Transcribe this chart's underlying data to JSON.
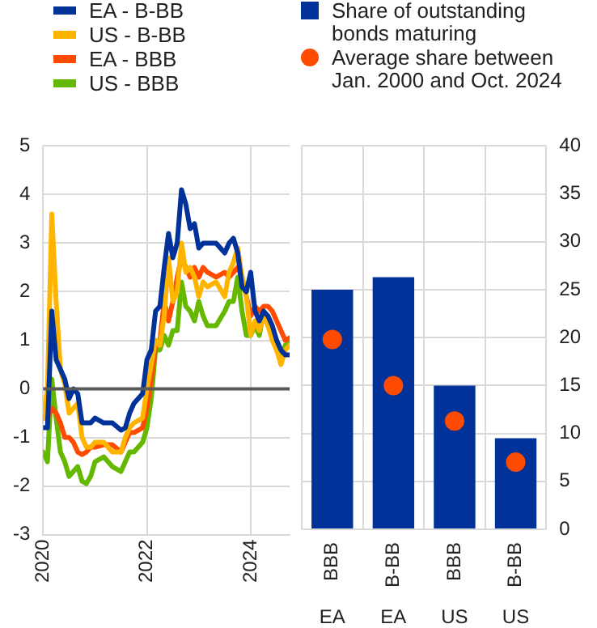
{
  "chart_data": [
    {
      "type": "line",
      "x": [
        "2020-01",
        "2020-02",
        "2020-03",
        "2020-04",
        "2020-05",
        "2020-06",
        "2020-07",
        "2020-08",
        "2020-09",
        "2020-10",
        "2020-11",
        "2020-12",
        "2021-01",
        "2021-03",
        "2021-05",
        "2021-07",
        "2021-08",
        "2021-09",
        "2021-10",
        "2021-12",
        "2022-01",
        "2022-02",
        "2022-03",
        "2022-04",
        "2022-05",
        "2022-06",
        "2022-07",
        "2022-08",
        "2022-09",
        "2022-10",
        "2022-11",
        "2022-12",
        "2023-01",
        "2023-02",
        "2023-03",
        "2023-05",
        "2023-07",
        "2023-08",
        "2023-09",
        "2023-10",
        "2023-11",
        "2023-12",
        "2024-01",
        "2024-02",
        "2024-03",
        "2024-04",
        "2024-05",
        "2024-06",
        "2024-07",
        "2024-08",
        "2024-09",
        "2024-10"
      ],
      "series": [
        {
          "name": "EA - B-BB",
          "color": "#003299",
          "values": [
            -0.8,
            -0.8,
            1.6,
            0.6,
            0.4,
            0.2,
            -0.2,
            0.0,
            -0.1,
            -0.7,
            -0.7,
            -0.7,
            -0.6,
            -0.7,
            -0.7,
            -0.85,
            -0.8,
            -0.5,
            -0.3,
            -0.1,
            0.6,
            0.8,
            1.6,
            1.7,
            2.5,
            3.2,
            2.7,
            3.0,
            4.1,
            3.8,
            3.3,
            3.4,
            2.9,
            3.0,
            3.0,
            3.0,
            2.8,
            3.0,
            3.1,
            2.8,
            2.1,
            2.0,
            2.4,
            1.6,
            1.4,
            1.6,
            1.5,
            1.3,
            1.0,
            0.8,
            0.7,
            0.7
          ]
        },
        {
          "name": "US - B-BB",
          "color": "#ffb400",
          "values": [
            -0.6,
            0.0,
            3.6,
            1.8,
            0.4,
            0.1,
            -0.5,
            -0.4,
            -0.3,
            -1.0,
            -1.2,
            -1.2,
            -1.1,
            -1.1,
            -1.3,
            -1.3,
            -1.0,
            -0.8,
            -0.7,
            -0.6,
            0.0,
            0.5,
            1.0,
            0.9,
            1.5,
            2.7,
            1.8,
            2.0,
            3.0,
            2.4,
            2.5,
            2.3,
            1.9,
            2.2,
            2.1,
            2.2,
            1.9,
            2.4,
            2.6,
            2.9,
            2.3,
            1.9,
            1.1,
            1.4,
            1.2,
            1.5,
            1.3,
            1.0,
            0.8,
            0.5,
            0.8,
            0.9
          ]
        },
        {
          "name": "EA - BBB",
          "color": "#ff4b00",
          "values": [
            -0.6,
            -0.6,
            -0.4,
            -0.5,
            -0.7,
            -1.0,
            -1.0,
            -1.1,
            -1.3,
            -1.35,
            -1.3,
            -1.2,
            -1.2,
            -1.15,
            -1.15,
            -1.3,
            -1.1,
            -0.9,
            -0.9,
            -0.8,
            -0.4,
            0.2,
            0.9,
            1.0,
            1.8,
            1.4,
            1.8,
            2.3,
            2.7,
            2.5,
            2.3,
            2.5,
            2.3,
            2.5,
            2.4,
            2.3,
            2.4,
            2.3,
            2.4,
            2.5,
            2.3,
            1.9,
            1.5,
            1.7,
            1.6,
            1.7,
            1.7,
            1.6,
            1.4,
            1.2,
            1.0,
            1.05
          ]
        },
        {
          "name": "US - BBB",
          "color": "#65b800",
          "values": [
            -1.3,
            -1.5,
            0.2,
            -0.6,
            -1.3,
            -1.5,
            -1.8,
            -1.7,
            -1.6,
            -1.9,
            -1.95,
            -1.8,
            -1.5,
            -1.4,
            -1.6,
            -1.7,
            -1.5,
            -1.3,
            -1.3,
            -1.1,
            -0.8,
            -0.2,
            0.8,
            0.8,
            1.1,
            0.9,
            1.2,
            1.2,
            2.2,
            1.7,
            1.6,
            1.4,
            1.8,
            1.5,
            1.3,
            1.3,
            1.6,
            1.8,
            1.8,
            2.3,
            1.6,
            1.1,
            1.1,
            1.3,
            1.1,
            1.6,
            1.3,
            1.1,
            0.8,
            0.6,
            0.9,
            0.95
          ]
        }
      ],
      "xlim": [
        "2020-01",
        "2024-10"
      ],
      "xticks": [
        {
          "value": "2020",
          "label": "2020"
        },
        {
          "value": "2022",
          "label": "2022"
        },
        {
          "value": "2024",
          "label": "2024"
        }
      ],
      "ylim": [
        -3,
        5
      ],
      "yticks": [
        -3,
        -2,
        -1,
        0,
        1,
        2,
        3,
        4,
        5
      ],
      "ref_lines": [
        {
          "axis": "y",
          "value": 0,
          "color": "#595959"
        }
      ],
      "grid": true,
      "legend": "top",
      "marker": "none",
      "line_style": "solid"
    },
    {
      "type": "bar",
      "categories": [
        "BBB\nEA",
        "B-BB\nEA",
        "BBB\nUS",
        "B-BB\nUS"
      ],
      "series": [
        {
          "name": "Share of outstanding bonds maturing",
          "type": "bar",
          "color": "#003299",
          "axis": "y2",
          "values": [
            25,
            26.3,
            15,
            9.5
          ]
        },
        {
          "name": "Average share between Jan. 2000 and Oct. 2024",
          "type": "scatter",
          "color": "#ff4b00",
          "axis": "y2",
          "x": [
            "BBB\nEA",
            "B-BB\nEA",
            "BBB\nUS",
            "B-BB\nUS"
          ],
          "values": [
            19.8,
            15,
            11.3,
            7
          ]
        }
      ],
      "y2lim": [
        0,
        40
      ],
      "y2ticks": [
        0,
        5,
        10,
        15,
        20,
        25,
        30,
        35,
        40
      ],
      "grid": true,
      "legend": "top"
    }
  ]
}
